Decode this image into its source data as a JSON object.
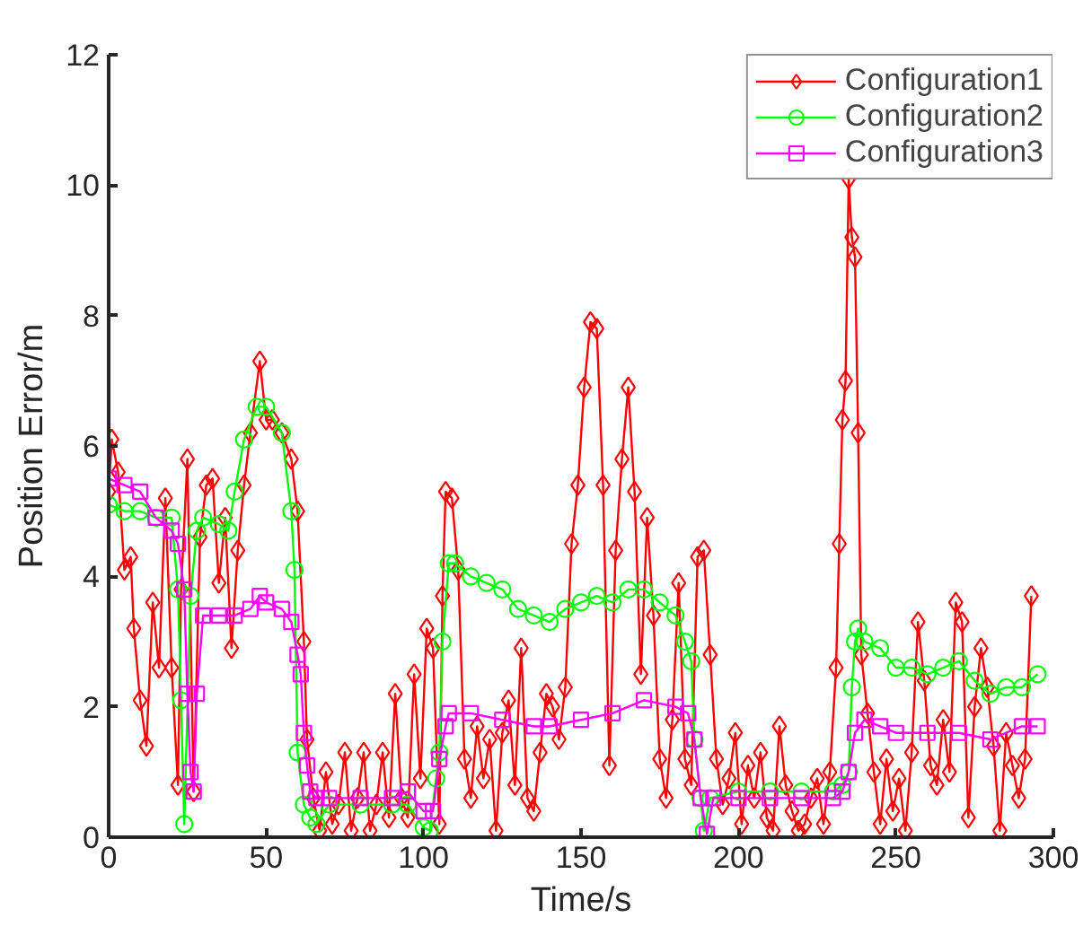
{
  "chart_data": {
    "type": "line",
    "xlabel": "Time/s",
    "ylabel": "Position Error/m",
    "xlim": [
      0,
      300
    ],
    "ylim": [
      0,
      12
    ],
    "xticks": [
      0,
      50,
      100,
      150,
      200,
      250,
      300
    ],
    "yticks": [
      0,
      2,
      4,
      6,
      8,
      10,
      12
    ],
    "grid": false,
    "legend": "top right",
    "line_style": "solid",
    "series": [
      {
        "name": "Configuration1",
        "color": "#ff0000",
        "marker": "diamond",
        "x": [
          0,
          1,
          3,
          5,
          7,
          8,
          10,
          12,
          14,
          16,
          18,
          20,
          22,
          23,
          25,
          27,
          29,
          31,
          33,
          35,
          37,
          39,
          41,
          43,
          45,
          48,
          50,
          52,
          55,
          58,
          60,
          62,
          63,
          65,
          67,
          69,
          71,
          73,
          75,
          77,
          79,
          81,
          83,
          85,
          87,
          89,
          91,
          93,
          95,
          97,
          99,
          101,
          103,
          105,
          106,
          107,
          109,
          111,
          113,
          115,
          117,
          119,
          121,
          123,
          125,
          127,
          129,
          131,
          133,
          135,
          137,
          139,
          141,
          143,
          145,
          147,
          149,
          151,
          153,
          155,
          157,
          159,
          161,
          163,
          165,
          167,
          169,
          171,
          173,
          175,
          177,
          179,
          181,
          183,
          185,
          187,
          189,
          191,
          193,
          195,
          197,
          199,
          201,
          203,
          205,
          207,
          209,
          211,
          213,
          215,
          217,
          219,
          221,
          223,
          225,
          227,
          229,
          231,
          232,
          233,
          234,
          235,
          236,
          237,
          238,
          239,
          241,
          243,
          245,
          247,
          249,
          251,
          253,
          255,
          257,
          259,
          261,
          263,
          265,
          267,
          269,
          271,
          273,
          275,
          277,
          279,
          281,
          283,
          285,
          287,
          289,
          291,
          293
        ],
        "values": [
          5.3,
          6.1,
          5.6,
          4.1,
          4.3,
          3.2,
          2.1,
          1.4,
          3.6,
          2.6,
          5.2,
          2.6,
          0.8,
          3.8,
          5.8,
          0.7,
          4.6,
          5.4,
          5.5,
          3.9,
          4.9,
          2.9,
          4.4,
          5.4,
          6.2,
          7.3,
          6.4,
          6.4,
          6.2,
          5.8,
          5.0,
          3.0,
          1.5,
          0.6,
          0.1,
          1.0,
          0.2,
          0.5,
          1.3,
          0.1,
          0.6,
          1.3,
          0.1,
          0.5,
          1.3,
          0.3,
          2.2,
          0.6,
          0.3,
          2.5,
          0.9,
          3.2,
          2.9,
          0.2,
          3.7,
          5.3,
          5.2,
          4.1,
          1.2,
          0.6,
          1.7,
          0.9,
          1.5,
          0.1,
          1.6,
          2.1,
          0.8,
          2.9,
          0.6,
          0.4,
          1.3,
          2.2,
          2.0,
          1.5,
          2.3,
          4.5,
          5.4,
          6.9,
          7.9,
          7.8,
          5.4,
          1.1,
          4.4,
          5.8,
          6.9,
          5.3,
          2.5,
          4.9,
          3.4,
          1.2,
          0.6,
          1.8,
          3.9,
          1.2,
          0.8,
          4.3,
          4.4,
          2.8,
          1.2,
          0.5,
          0.9,
          1.6,
          0.2,
          1.1,
          0.6,
          1.3,
          0.3,
          0.1,
          1.7,
          0.8,
          0.4,
          0.1,
          0.2,
          0.6,
          0.9,
          0.2,
          1.0,
          2.6,
          4.5,
          6.4,
          7.0,
          10.1,
          9.2,
          8.9,
          6.2,
          2.8,
          1.9,
          1.0,
          0.2,
          1.2,
          0.4,
          0.9,
          0.1,
          1.3,
          3.3,
          2.4,
          1.1,
          0.8,
          1.8,
          1.0,
          3.6,
          3.3,
          0.3,
          2.0,
          2.9,
          2.3,
          1.4,
          0.1,
          1.6,
          1.1,
          0.6,
          1.2,
          3.7
        ]
      },
      {
        "name": "Configuration2",
        "color": "#00ff00",
        "marker": "circle",
        "x": [
          0,
          5,
          10,
          15,
          20,
          22,
          23,
          24,
          26,
          28,
          30,
          35,
          38,
          40,
          43,
          47,
          50,
          55,
          58,
          59,
          60,
          62,
          64,
          66,
          70,
          80,
          90,
          95,
          100,
          102,
          104,
          105,
          106,
          108,
          110,
          115,
          120,
          125,
          130,
          135,
          140,
          145,
          150,
          155,
          160,
          165,
          170,
          175,
          180,
          183,
          185,
          186,
          188,
          189,
          191,
          200,
          210,
          220,
          230,
          233,
          235,
          236,
          237,
          238,
          240,
          245,
          250,
          255,
          260,
          265,
          270,
          275,
          280,
          285,
          290,
          295
        ],
        "values": [
          5.1,
          5.0,
          5.0,
          4.9,
          4.9,
          3.8,
          2.1,
          0.2,
          3.7,
          4.7,
          4.9,
          4.8,
          4.7,
          5.3,
          6.1,
          6.6,
          6.6,
          6.2,
          5.0,
          4.1,
          1.3,
          0.5,
          0.3,
          0.2,
          0.5,
          0.5,
          0.5,
          0.5,
          0.15,
          0.1,
          0.9,
          1.3,
          3.0,
          4.2,
          4.2,
          4.0,
          3.9,
          3.8,
          3.5,
          3.4,
          3.3,
          3.5,
          3.6,
          3.7,
          3.6,
          3.8,
          3.8,
          3.6,
          3.4,
          3.0,
          2.7,
          1.5,
          0.6,
          0.1,
          0.6,
          0.7,
          0.7,
          0.7,
          0.7,
          0.8,
          1.0,
          2.3,
          3.0,
          3.2,
          3.0,
          2.9,
          2.6,
          2.6,
          2.5,
          2.6,
          2.7,
          2.4,
          2.2,
          2.3,
          2.3,
          2.5
        ]
      },
      {
        "name": "Configuration3",
        "color": "#ff00ff",
        "marker": "square",
        "x": [
          0,
          5,
          10,
          15,
          20,
          22,
          24,
          25,
          26,
          27,
          28,
          30,
          35,
          40,
          45,
          48,
          50,
          55,
          58,
          60,
          61,
          62,
          63,
          64,
          66,
          70,
          80,
          90,
          95,
          100,
          103,
          105,
          107,
          108,
          115,
          125,
          135,
          140,
          150,
          160,
          170,
          180,
          184,
          186,
          188,
          190,
          192,
          200,
          210,
          220,
          230,
          233,
          235,
          237,
          240,
          245,
          250,
          260,
          270,
          280,
          290,
          295
        ],
        "values": [
          5.5,
          5.4,
          5.3,
          4.9,
          4.7,
          4.5,
          3.8,
          2.2,
          1.0,
          0.7,
          2.2,
          3.4,
          3.4,
          3.4,
          3.5,
          3.7,
          3.6,
          3.5,
          3.3,
          2.8,
          2.5,
          1.6,
          1.1,
          0.7,
          0.6,
          0.6,
          0.6,
          0.6,
          0.7,
          0.4,
          0.4,
          1.2,
          1.7,
          1.9,
          1.9,
          1.8,
          1.7,
          1.7,
          1.8,
          1.9,
          2.1,
          2.0,
          1.9,
          1.5,
          0.6,
          0.05,
          0.6,
          0.6,
          0.6,
          0.6,
          0.6,
          0.7,
          1.0,
          1.6,
          1.8,
          1.7,
          1.6,
          1.6,
          1.6,
          1.5,
          1.7,
          1.7
        ]
      }
    ]
  }
}
